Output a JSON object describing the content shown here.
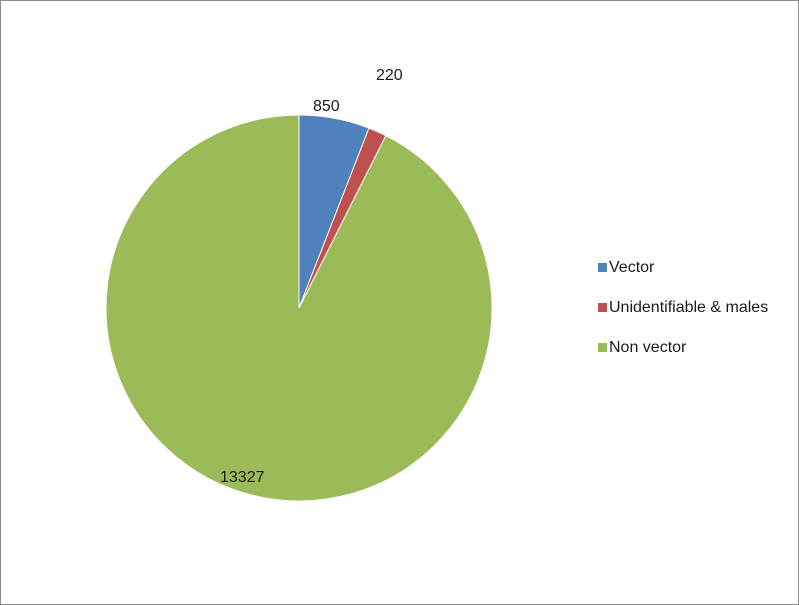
{
  "chart_data": {
    "type": "pie",
    "title": "",
    "categories": [
      "Vector",
      "Unidentifiable & males",
      "Non vector"
    ],
    "values": [
      850,
      220,
      13327
    ],
    "data_labels": [
      "850",
      "220",
      "13327"
    ],
    "colors": [
      "#4F81BD",
      "#C0504D",
      "#9BBB59"
    ],
    "legend": {
      "position": "right",
      "entries": [
        "Vector",
        "Unidentifiable & males",
        "Non vector"
      ]
    },
    "start_angle": "12 o'clock",
    "direction": "clockwise"
  }
}
